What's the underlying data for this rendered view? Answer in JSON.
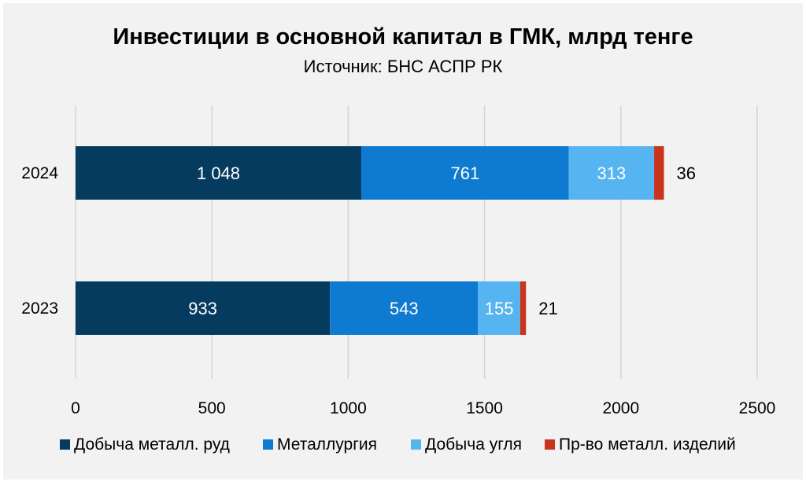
{
  "chart_data": {
    "type": "bar",
    "orientation": "horizontal",
    "stacked": true,
    "title": "Инвестиции в основной капитал в ГМК, млрд тенге",
    "subtitle": "Источник: БНС АСПР РК",
    "categories": [
      "2024",
      "2023"
    ],
    "series": [
      {
        "name": "Добыча металл. руд",
        "values": [
          1048,
          933
        ],
        "labels": [
          "1 048",
          "933"
        ],
        "color": "#063b60"
      },
      {
        "name": "Металлургия",
        "values": [
          761,
          543
        ],
        "labels": [
          "761",
          "543"
        ],
        "color": "#0e7ad0"
      },
      {
        "name": "Добыча угля",
        "values": [
          313,
          155
        ],
        "labels": [
          "313",
          "155"
        ],
        "color": "#56b4f0"
      },
      {
        "name": "Пр-во металл. изделий",
        "values": [
          36,
          21
        ],
        "labels": [
          "36",
          "21"
        ],
        "color": "#c8341c"
      }
    ],
    "xlim": [
      0,
      2500
    ],
    "xticks": [
      "0",
      "500",
      "1000",
      "1500",
      "2000",
      "2500"
    ],
    "grid": true,
    "legend_position": "bottom"
  }
}
